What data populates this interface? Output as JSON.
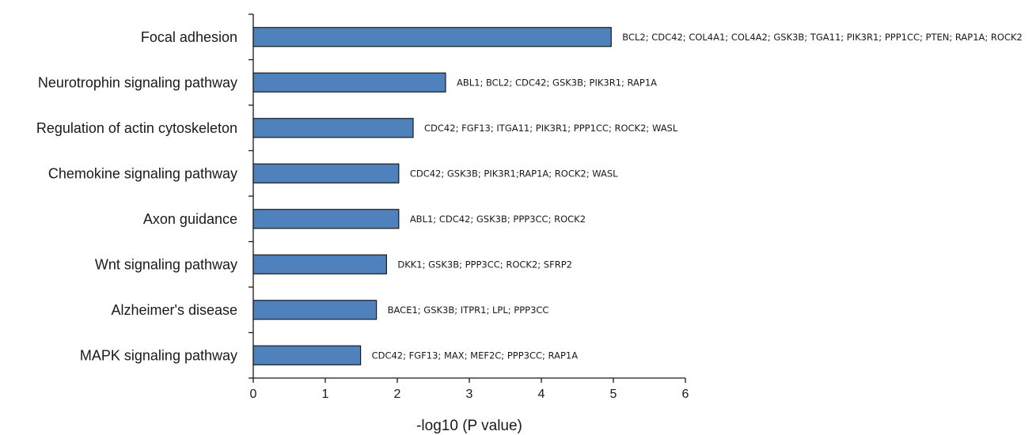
{
  "chart_data": {
    "type": "bar",
    "orientation": "horizontal",
    "xlabel": "-log10 (P value)",
    "xlim": [
      0,
      6
    ],
    "xticks": [
      0,
      1,
      2,
      3,
      4,
      5,
      6
    ],
    "bar_color": "#4f81bd",
    "bar_edge_color": "#1a1a1a",
    "categories": [
      "Focal adhesion",
      "Neurotrophin signaling pathway",
      "Regulation of actin cytoskeleton",
      "Chemokine signaling pathway",
      "Axon guidance",
      "Wnt signaling pathway",
      "Alzheimer's disease",
      "MAPK signaling pathway"
    ],
    "values": [
      4.97,
      2.67,
      2.22,
      2.02,
      2.02,
      1.85,
      1.71,
      1.49
    ],
    "annotations": [
      "BCL2; CDC42; COL4A1; COL4A2; GSK3B; TGA11; PIK3R1; PPP1CC; PTEN; RAP1A; ROCK2",
      "ABL1; BCL2; CDC42; GSK3B; PIK3R1; RAP1A",
      "CDC42; FGF13; ITGA11; PIK3R1; PPP1CC; ROCK2; WASL",
      "CDC42; GSK3B; PIK3R1;RAP1A; ROCK2; WASL",
      "ABL1; CDC42; GSK3B; PPP3CC; ROCK2",
      "DKK1; GSK3B; PPP3CC; ROCK2; SFRP2",
      "BACE1; GSK3B; ITPR1; LPL; PPP3CC",
      "CDC42; FGF13; MAX; MEF2C; PPP3CC; RAP1A"
    ]
  }
}
